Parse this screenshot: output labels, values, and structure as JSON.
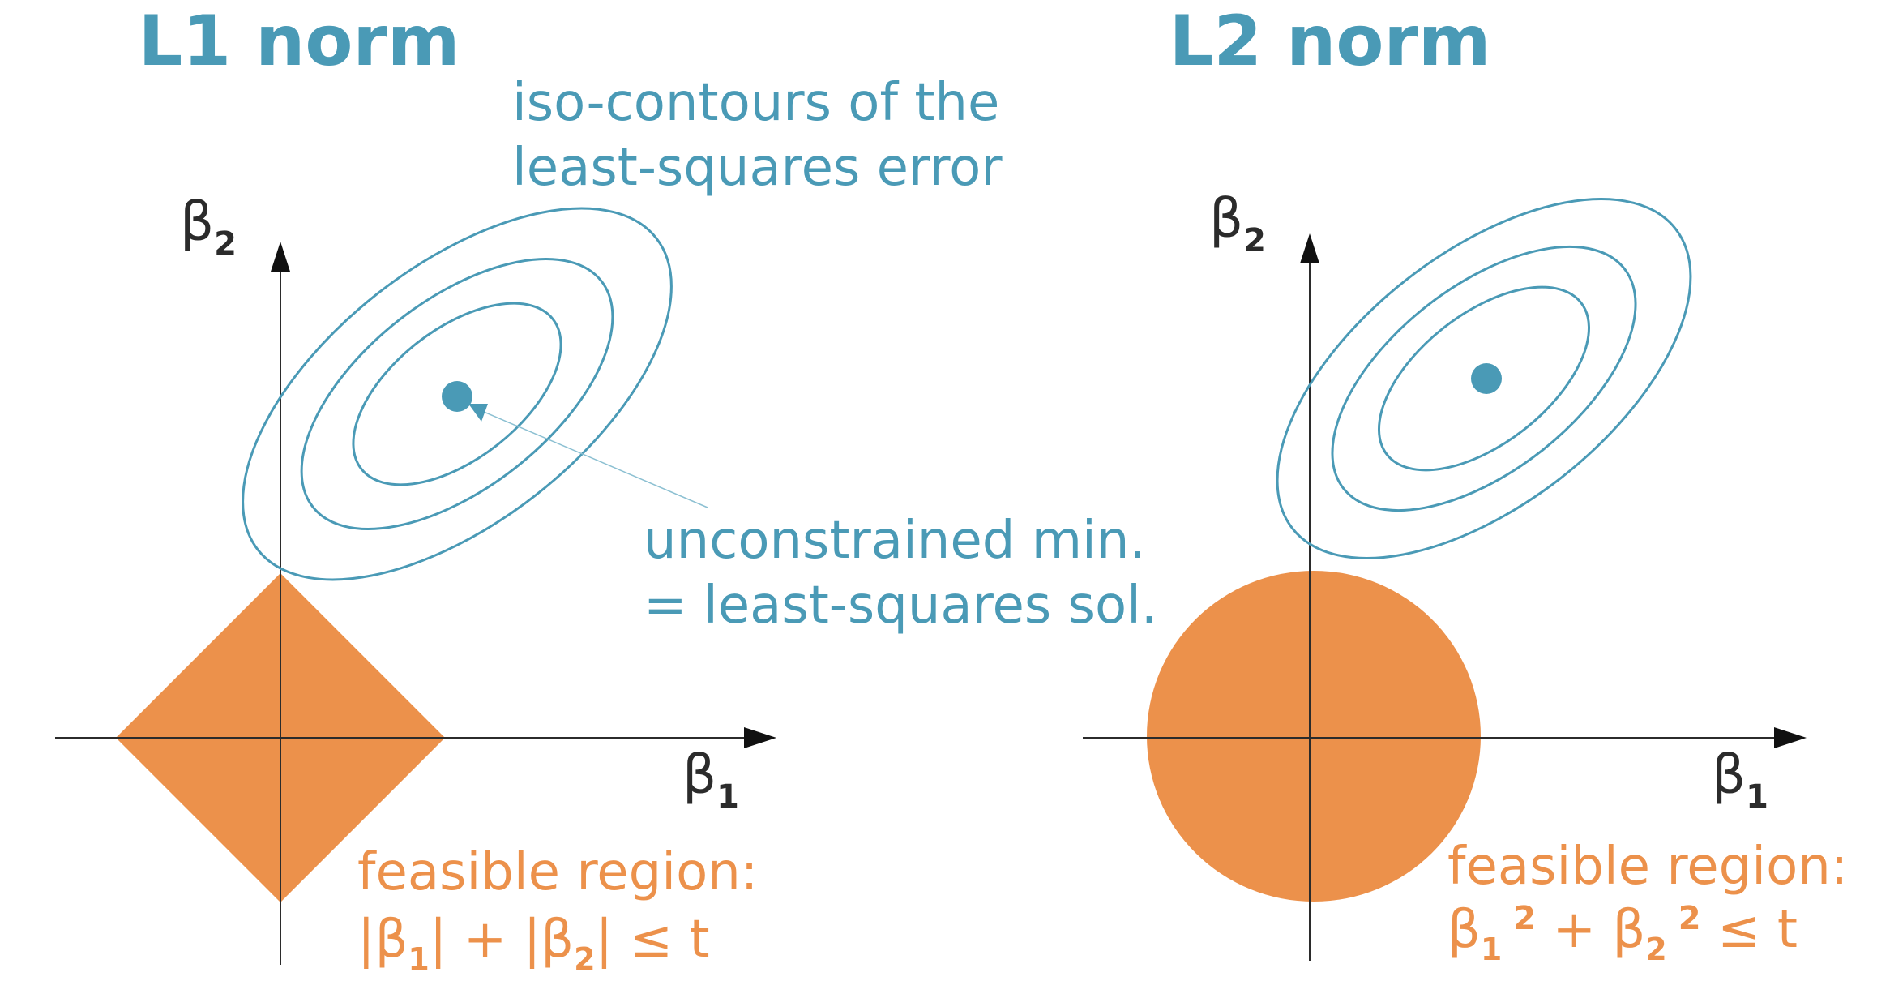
{
  "colors": {
    "blue": "#4a9ab6",
    "orange": "#ec914b",
    "axis": "#2b2b2b",
    "background": "#ffffff"
  },
  "panels": [
    {
      "title": "L1 norm",
      "axes": {
        "x_symbol": "β",
        "x_subscript": "1",
        "y_symbol": "β",
        "y_subscript": "2"
      },
      "feasible_region": {
        "shape": "diamond",
        "label_line1": "feasible region:",
        "formula": {
          "bar_open1": "|",
          "beta1": "β",
          "sub1": "1",
          "bar_close1": "|",
          "plus": " + ",
          "bar_open2": "|",
          "beta2": "β",
          "sub2": "2",
          "bar_close2": "|",
          "rel": " ≤ t"
        }
      }
    },
    {
      "title": "L2 norm",
      "axes": {
        "x_symbol": "β",
        "x_subscript": "1",
        "y_symbol": "β",
        "y_subscript": "2"
      },
      "feasible_region": {
        "shape": "circle",
        "label_line1": "feasible region:",
        "formula": {
          "beta1": "β",
          "sub1": "1",
          "sup1": "2",
          "plus": " + ",
          "beta2": "β",
          "sub2": "2",
          "sup2": "2",
          "rel": " ≤ t"
        }
      }
    }
  ],
  "annotations": {
    "contours_line1": "iso-contours of the",
    "contours_line2": "least-squares error",
    "min_line1": "unconstrained min.",
    "min_line2": "= least-squares sol."
  }
}
